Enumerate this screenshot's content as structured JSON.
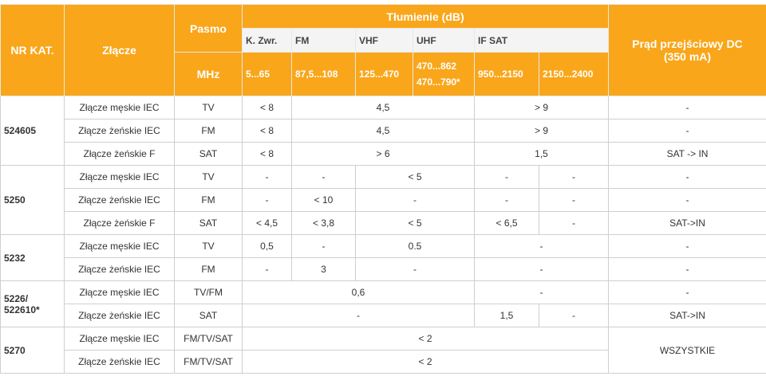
{
  "header": {
    "nr_kat": "NR KAT.",
    "zlacze": "Złącze",
    "pasmo": "Pasmo",
    "tlumienie": "Tłumienie (dB)",
    "prad": [
      "Prąd przejściowy DC",
      "(350 mA)"
    ],
    "bands": [
      "K. Zwr.",
      "FM",
      "VHF",
      "UHF",
      "IF SAT"
    ],
    "mhz": "MHz",
    "ranges": [
      "5...65",
      "87,5...108",
      "125...470",
      [
        "470...862",
        "470...790*"
      ],
      "950...2150",
      "2150...2400"
    ]
  },
  "groups": [
    {
      "nr": [
        "524605"
      ],
      "rows": [
        [
          "Złącze męskie IEC",
          "TV",
          "< 8",
          "4,5",
          "> 9",
          "-"
        ],
        [
          "Złącze żeńskie IEC",
          "FM",
          "< 8",
          "4,5",
          "> 9",
          "-"
        ],
        [
          "Złącze żeńskie F",
          "SAT",
          "< 8",
          "> 6",
          "1,5",
          "SAT -> IN"
        ]
      ]
    },
    {
      "nr": [
        "5250"
      ],
      "rows": [
        [
          "Złącze męskie IEC",
          "TV",
          "-",
          "-",
          "< 5",
          "-",
          "-",
          "-"
        ],
        [
          "Złącze żeńskie IEC",
          "FM",
          "-",
          "< 10",
          "-",
          "-",
          "-",
          "-"
        ],
        [
          "Złącze żeńskie F",
          "SAT",
          "< 4,5",
          "< 3,8",
          "< 5",
          "< 6,5",
          "-",
          "SAT->IN"
        ]
      ]
    },
    {
      "nr": [
        "5232"
      ],
      "rows": [
        [
          "Złącze męskie IEC",
          "TV",
          "0,5",
          "-",
          "0.5",
          "-",
          "-"
        ],
        [
          "Złącze żeńskie IEC",
          "FM",
          "-",
          "3",
          "-",
          "-",
          "-"
        ]
      ]
    },
    {
      "nr": [
        "5226/",
        "522610*"
      ],
      "rows": [
        [
          "Złącze męskie IEC",
          "TV/FM",
          "0,6",
          "-",
          "-"
        ],
        [
          "Złącze żeńskie IEC",
          "SAT",
          "-",
          "1,5",
          "-",
          "SAT->IN"
        ]
      ]
    },
    {
      "nr": [
        "5270"
      ],
      "rows": [
        [
          "Złącze męskie IEC",
          "FM/TV/SAT",
          "< 2",
          "WSZYSTKIE"
        ],
        [
          "Złącze żeńskie IEC",
          "FM/TV/SAT",
          "< 2"
        ]
      ]
    }
  ]
}
